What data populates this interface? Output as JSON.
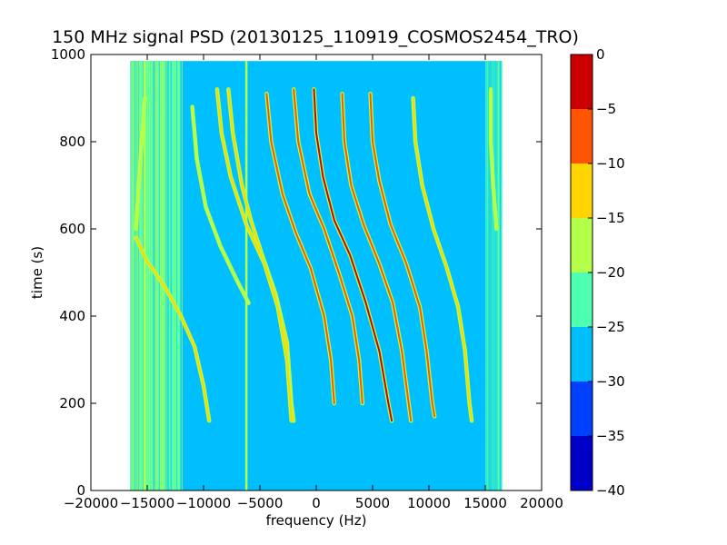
{
  "chart_data": {
    "type": "heatmap",
    "title": "150 MHz signal PSD (20130125_110919_COSMOS2454_TRO)",
    "xlabel": "frequency (Hz)",
    "ylabel": "time (s)",
    "xlim": [
      -20000,
      20000
    ],
    "ylim": [
      0,
      1000
    ],
    "x_ticks": [
      -20000,
      -15000,
      -10000,
      -5000,
      0,
      5000,
      10000,
      15000,
      20000
    ],
    "y_ticks": [
      0,
      200,
      400,
      600,
      800,
      1000
    ],
    "data_extent": {
      "x": [
        -16500,
        16500
      ],
      "y": [
        0,
        985
      ]
    },
    "background_level_range": [
      -30,
      -25
    ],
    "colorbar": {
      "range": [
        -40,
        0
      ],
      "ticks": [
        0,
        -5,
        -10,
        -15,
        -20,
        -25,
        -30,
        -35,
        -40
      ],
      "levels": [
        {
          "from": -40,
          "to": -35,
          "color": "#0000c8"
        },
        {
          "from": -35,
          "to": -30,
          "color": "#0040ff"
        },
        {
          "from": -30,
          "to": -25,
          "color": "#00bfff"
        },
        {
          "from": -25,
          "to": -20,
          "color": "#4dffb0"
        },
        {
          "from": -20,
          "to": -15,
          "color": "#b3ff4a"
        },
        {
          "from": -15,
          "to": -10,
          "color": "#ffd500"
        },
        {
          "from": -10,
          "to": -5,
          "color": "#ff5500"
        },
        {
          "from": -5,
          "to": 0,
          "color": "#cc0000"
        }
      ]
    },
    "series": [
      {
        "points": [
          [
            -9500,
            160
          ],
          [
            -10000,
            240
          ],
          [
            -10800,
            330
          ],
          [
            -12000,
            400
          ],
          [
            -13500,
            470
          ],
          [
            -15000,
            525
          ],
          [
            -16000,
            580
          ]
        ],
        "peak_level": -12
      },
      {
        "points": [
          [
            -15200,
            900
          ],
          [
            -15400,
            830
          ],
          [
            -15600,
            760
          ],
          [
            -15800,
            680
          ],
          [
            -16000,
            600
          ]
        ],
        "peak_level": -17
      },
      {
        "points": [
          [
            -11000,
            880
          ],
          [
            -10600,
            760
          ],
          [
            -9800,
            650
          ],
          [
            -8500,
            560
          ],
          [
            -7000,
            480
          ],
          [
            -6000,
            430
          ]
        ],
        "peak_level": -17
      },
      {
        "points": [
          [
            -7800,
            920
          ],
          [
            -7400,
            820
          ],
          [
            -6600,
            700
          ],
          [
            -5800,
            620
          ],
          [
            -4800,
            540
          ],
          [
            -3600,
            450
          ],
          [
            -2600,
            340
          ],
          [
            -2200,
            200
          ],
          [
            -2000,
            160
          ]
        ],
        "peak_level": -12
      },
      {
        "points": [
          [
            -4400,
            910
          ],
          [
            -4000,
            800
          ],
          [
            -3000,
            680
          ],
          [
            -1800,
            590
          ],
          [
            -500,
            510
          ],
          [
            700,
            400
          ],
          [
            1300,
            300
          ],
          [
            1600,
            200
          ]
        ],
        "peak_level": -7
      },
      {
        "points": [
          [
            -2000,
            920
          ],
          [
            -1600,
            800
          ],
          [
            -600,
            680
          ],
          [
            700,
            600
          ],
          [
            2000,
            500
          ],
          [
            3200,
            400
          ],
          [
            3800,
            300
          ],
          [
            4100,
            200
          ]
        ],
        "peak_level": -7
      },
      {
        "points": [
          [
            -8800,
            920
          ],
          [
            -8400,
            820
          ],
          [
            -7600,
            720
          ],
          [
            -6200,
            610
          ],
          [
            -4600,
            520
          ],
          [
            -3400,
            420
          ],
          [
            -2600,
            300
          ],
          [
            -2200,
            160
          ]
        ],
        "peak_level": -12
      },
      {
        "points": [
          [
            -200,
            920
          ],
          [
            0,
            820
          ],
          [
            600,
            720
          ],
          [
            1600,
            620
          ],
          [
            3000,
            540
          ],
          [
            4400,
            430
          ],
          [
            5600,
            320
          ],
          [
            6400,
            200
          ],
          [
            6700,
            160
          ]
        ],
        "peak_level": -3
      },
      {
        "points": [
          [
            2300,
            910
          ],
          [
            2500,
            800
          ],
          [
            3100,
            700
          ],
          [
            4200,
            610
          ],
          [
            5600,
            520
          ],
          [
            6800,
            430
          ],
          [
            7600,
            320
          ],
          [
            8200,
            200
          ],
          [
            8400,
            160
          ]
        ],
        "peak_level": -7
      },
      {
        "points": [
          [
            4800,
            910
          ],
          [
            5000,
            800
          ],
          [
            5600,
            710
          ],
          [
            6600,
            610
          ],
          [
            8000,
            520
          ],
          [
            9200,
            420
          ],
          [
            9800,
            320
          ],
          [
            10300,
            200
          ],
          [
            10500,
            170
          ]
        ],
        "peak_level": -7
      },
      {
        "points": [
          [
            8600,
            900
          ],
          [
            8800,
            800
          ],
          [
            9400,
            700
          ],
          [
            10400,
            600
          ],
          [
            11600,
            510
          ],
          [
            12600,
            420
          ],
          [
            13200,
            320
          ],
          [
            13600,
            200
          ],
          [
            13800,
            160
          ]
        ],
        "peak_level": -12
      },
      {
        "points": [
          [
            15500,
            920
          ],
          [
            15500,
            800
          ],
          [
            15700,
            700
          ],
          [
            16000,
            600
          ]
        ],
        "peak_level": -17
      }
    ]
  }
}
